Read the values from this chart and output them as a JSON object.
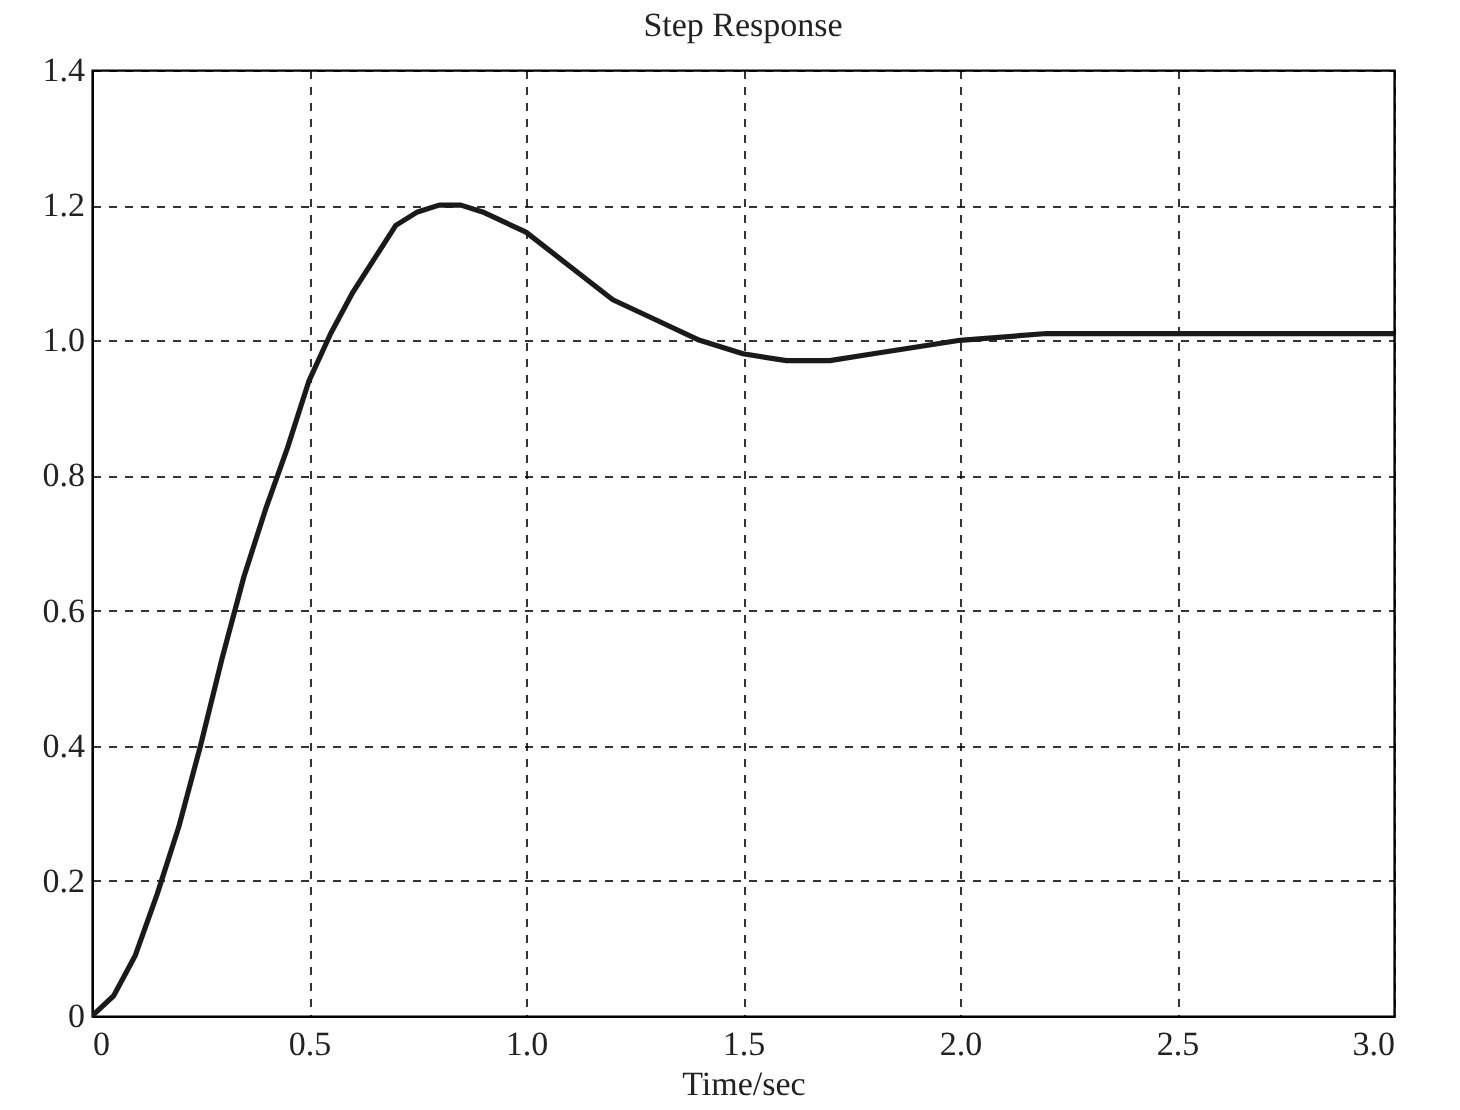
{
  "chart_data": {
    "type": "line",
    "title": "Step Response",
    "xlabel": "Time/sec",
    "x": [
      0,
      0.05,
      0.1,
      0.15,
      0.2,
      0.25,
      0.3,
      0.35,
      0.4,
      0.45,
      0.5,
      0.55,
      0.6,
      0.65,
      0.7,
      0.75,
      0.8,
      0.85,
      0.9,
      1.0,
      1.1,
      1.2,
      1.3,
      1.4,
      1.5,
      1.6,
      1.7,
      1.8,
      1.9,
      2.0,
      2.2,
      2.4,
      2.6,
      2.8,
      3.0
    ],
    "series": [
      {
        "color": "#1a1a1a",
        "values": [
          0,
          0.03,
          0.09,
          0.18,
          0.28,
          0.4,
          0.53,
          0.65,
          0.75,
          0.84,
          0.94,
          1.01,
          1.07,
          1.12,
          1.17,
          1.19,
          1.2,
          1.2,
          1.19,
          1.16,
          1.11,
          1.06,
          1.03,
          1.0,
          0.98,
          0.97,
          0.97,
          0.98,
          0.99,
          1.0,
          1.01,
          1.01,
          1.01,
          1.01,
          1.01
        ]
      }
    ],
    "xlim": [
      0,
      3
    ],
    "ylim": [
      0,
      1.4
    ],
    "xticks": [
      0,
      0.5,
      {
        "value": 1,
        "label": "1.0"
      },
      1.5,
      {
        "value": 2,
        "label": "2.0"
      },
      2.5,
      {
        "value": 3,
        "label": "3.0"
      }
    ],
    "yticks": [
      0,
      0.2,
      0.4,
      0.6,
      0.8,
      {
        "value": 1,
        "label": "1.0"
      },
      1.2,
      1.4
    ],
    "grid": true,
    "line_style": "solid",
    "marker": "none"
  }
}
